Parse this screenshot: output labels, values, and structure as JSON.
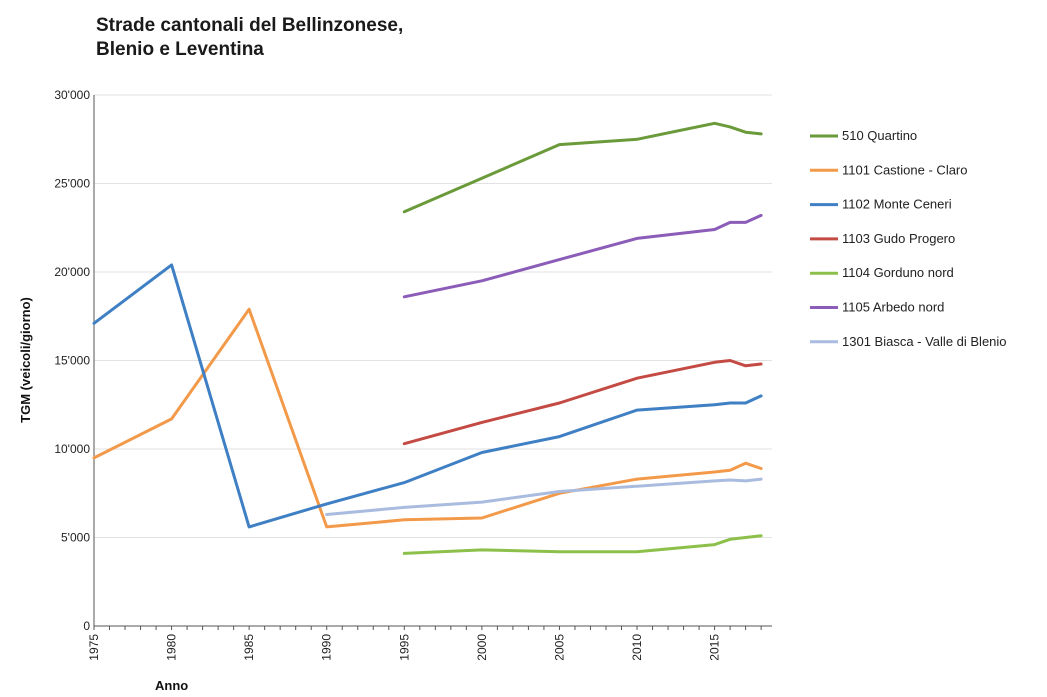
{
  "chart_data": {
    "type": "line",
    "title_lines": [
      "Strade cantonali del Bellinzonese,",
      "Blenio e Leventina"
    ],
    "xlabel": "Anno",
    "ylabel": "TGM (veicoli/giorno)",
    "xlim": [
      1975,
      2018.7
    ],
    "ylim": [
      0,
      30000
    ],
    "xticks": [
      1975,
      1980,
      1985,
      1990,
      1995,
      2000,
      2005,
      2010,
      2015
    ],
    "yticks": [
      {
        "value": 0,
        "label": "0"
      },
      {
        "value": 5000,
        "label": "5'000"
      },
      {
        "value": 10000,
        "label": "10'000"
      },
      {
        "value": 15000,
        "label": "15'000"
      },
      {
        "value": 20000,
        "label": "20'000"
      },
      {
        "value": 25000,
        "label": "25'000"
      },
      {
        "value": 30000,
        "label": "30'000"
      }
    ],
    "grid": true,
    "legend_position": "right",
    "series": [
      {
        "name": "510 Quartino",
        "color": "#6a9a3a",
        "points": [
          [
            1995,
            23400
          ],
          [
            2000,
            25300
          ],
          [
            2005,
            27200
          ],
          [
            2010,
            27500
          ],
          [
            2015,
            28400
          ],
          [
            2016,
            28200
          ],
          [
            2017,
            27900
          ],
          [
            2018,
            27800
          ]
        ]
      },
      {
        "name": "1101 Castione - Claro",
        "color": "#f39a4a",
        "points": [
          [
            1975,
            9500
          ],
          [
            1980,
            11700
          ],
          [
            1985,
            17900
          ],
          [
            1990,
            5600
          ],
          [
            1995,
            6000
          ],
          [
            2000,
            6100
          ],
          [
            2005,
            7500
          ],
          [
            2010,
            8300
          ],
          [
            2015,
            8700
          ],
          [
            2016,
            8800
          ],
          [
            2017,
            9200
          ],
          [
            2018,
            8900
          ]
        ]
      },
      {
        "name": "1102 Monte Ceneri",
        "color": "#3f7fc4",
        "points": [
          [
            1975,
            17100
          ],
          [
            1980,
            20400
          ],
          [
            1985,
            5600
          ],
          [
            1990,
            6900
          ],
          [
            1995,
            8100
          ],
          [
            2000,
            9800
          ],
          [
            2005,
            10700
          ],
          [
            2010,
            12200
          ],
          [
            2015,
            12500
          ],
          [
            2016,
            12600
          ],
          [
            2017,
            12600
          ],
          [
            2018,
            13000
          ]
        ]
      },
      {
        "name": "1103 Gudo Progero",
        "color": "#c44a44",
        "points": [
          [
            1995,
            10300
          ],
          [
            2000,
            11500
          ],
          [
            2005,
            12600
          ],
          [
            2010,
            14000
          ],
          [
            2015,
            14900
          ],
          [
            2016,
            15000
          ],
          [
            2017,
            14700
          ],
          [
            2018,
            14800
          ]
        ]
      },
      {
        "name": "1104 Gorduno nord",
        "color": "#8cc04a",
        "points": [
          [
            1995,
            4100
          ],
          [
            2000,
            4300
          ],
          [
            2005,
            4200
          ],
          [
            2010,
            4200
          ],
          [
            2015,
            4600
          ],
          [
            2016,
            4900
          ],
          [
            2017,
            5000
          ],
          [
            2018,
            5100
          ]
        ]
      },
      {
        "name": "1105 Arbedo nord",
        "color": "#8b5db8",
        "points": [
          [
            1995,
            18600
          ],
          [
            2000,
            19500
          ],
          [
            2005,
            20700
          ],
          [
            2010,
            21900
          ],
          [
            2015,
            22400
          ],
          [
            2016,
            22800
          ],
          [
            2017,
            22800
          ],
          [
            2018,
            23200
          ]
        ]
      },
      {
        "name": "1301 Biasca - Valle di Blenio",
        "color": "#a9bcdf",
        "points": [
          [
            1990,
            6300
          ],
          [
            1995,
            6700
          ],
          [
            2000,
            7000
          ],
          [
            2005,
            7600
          ],
          [
            2010,
            7900
          ],
          [
            2015,
            8200
          ],
          [
            2016,
            8250
          ],
          [
            2017,
            8200
          ],
          [
            2018,
            8300
          ]
        ]
      }
    ]
  }
}
